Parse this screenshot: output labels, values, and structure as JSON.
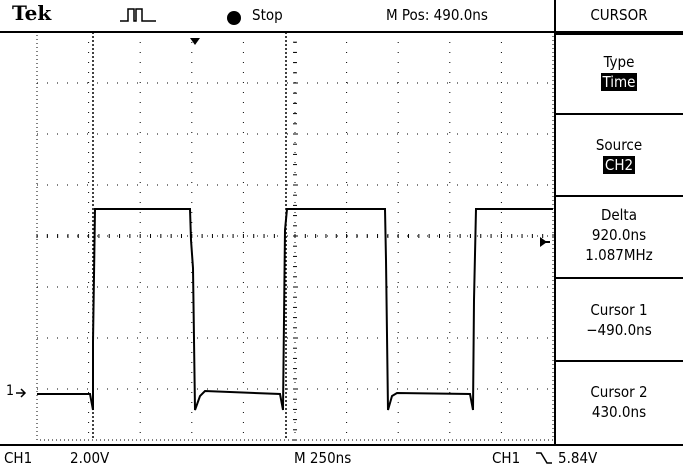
{
  "top_bar": {
    "brand": "Tek",
    "acquisition_icon": "trigger-pulse-icon",
    "run_state_icon": "stop-dot-icon",
    "run_state": "Stop",
    "position": "M Pos: 490.0ns"
  },
  "menu": {
    "title": "CURSOR",
    "items": [
      {
        "label": "Type",
        "value": "Time",
        "value_highlighted": true
      },
      {
        "label": "Source",
        "value": "CH2",
        "value_highlighted": true
      },
      {
        "label": "Delta",
        "value": "920.0ns",
        "value2": "1.087MHz"
      },
      {
        "label": "Cursor 1",
        "value": "−490.0ns"
      },
      {
        "label": "Cursor 2",
        "value": "430.0ns"
      }
    ]
  },
  "bottom_bar": {
    "ch1_label": "CH1",
    "ch1_scale": "2.00V",
    "time_base": "M 250ns",
    "trigger_source": "CH1",
    "trigger_slope_icon": "falling-edge-icon",
    "trigger_level": "5.84V"
  },
  "markers": {
    "ch1_ground": "1"
  },
  "waveform": {
    "description_free": true,
    "low_level_div": -2.5,
    "high_level_div": 1.7,
    "edges_div": [
      1.6,
      5.0,
      8.0
    ]
  },
  "colors": {
    "background": "#ffffff",
    "trace": "#000000",
    "highlight": "#000000"
  }
}
